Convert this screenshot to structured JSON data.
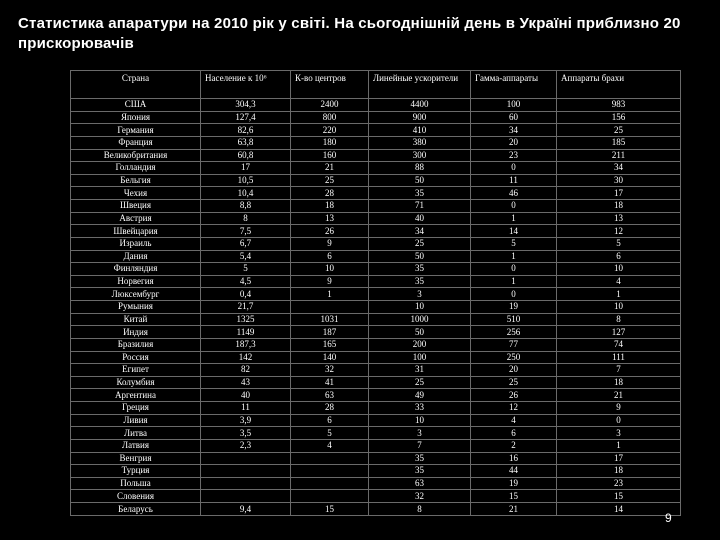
{
  "title": "Статистика апаратури на 2010 рік у світі. На сьогоднішній день в Україні приблизно 20 прискорювачів",
  "table": {
    "headers": [
      "Страна",
      "Население к 10⁶",
      "К-во центров",
      "Линейные ускорители",
      "Гамма-аппараты",
      "Аппараты брахи"
    ],
    "rows": [
      [
        "США",
        "304,3",
        "2400",
        "4400",
        "100",
        "983"
      ],
      [
        "Япония",
        "127,4",
        "800",
        "900",
        "60",
        "156"
      ],
      [
        "Германия",
        "82,6",
        "220",
        "410",
        "34",
        "25"
      ],
      [
        "Франция",
        "63,8",
        "180",
        "380",
        "20",
        "185"
      ],
      [
        "Великобритания",
        "60,8",
        "160",
        "300",
        "23",
        "211"
      ],
      [
        "Голландия",
        "17",
        "21",
        "88",
        "0",
        "34"
      ],
      [
        "Бельгия",
        "10,5",
        "25",
        "50",
        "11",
        "30"
      ],
      [
        "Чехия",
        "10,4",
        "28",
        "35",
        "46",
        "17"
      ],
      [
        "Швеция",
        "8,8",
        "18",
        "71",
        "0",
        "18"
      ],
      [
        "Австрия",
        "8",
        "13",
        "40",
        "1",
        "13"
      ],
      [
        "Швейцария",
        "7,5",
        "26",
        "34",
        "14",
        "12"
      ],
      [
        "Израиль",
        "6,7",
        "9",
        "25",
        "5",
        "5"
      ],
      [
        "Дания",
        "5,4",
        "6",
        "50",
        "1",
        "6"
      ],
      [
        "Финляндия",
        "5",
        "10",
        "35",
        "0",
        "10"
      ],
      [
        "Норвегия",
        "4,5",
        "9",
        "35",
        "1",
        "4"
      ],
      [
        "Люксембург",
        "0,4",
        "1",
        "3",
        "0",
        "1"
      ],
      [
        "Румыния",
        "21,7",
        "",
        "10",
        "19",
        "10"
      ],
      [
        "Китай",
        "1325",
        "1031",
        "1000",
        "510",
        "8"
      ],
      [
        "Индия",
        "1149",
        "187",
        "50",
        "256",
        "127"
      ],
      [
        "Бразилия",
        "187,3",
        "165",
        "200",
        "77",
        "74"
      ],
      [
        "Россия",
        "142",
        "140",
        "100",
        "250",
        "111"
      ],
      [
        "Египет",
        "82",
        "32",
        "31",
        "20",
        "7"
      ],
      [
        "Колумбия",
        "43",
        "41",
        "25",
        "25",
        "18"
      ],
      [
        "Аргентина",
        "40",
        "63",
        "49",
        "26",
        "21"
      ],
      [
        "Греция",
        "11",
        "28",
        "33",
        "12",
        "9"
      ],
      [
        "Ливия",
        "3,9",
        "6",
        "10",
        "4",
        "0"
      ],
      [
        "Литва",
        "3,5",
        "5",
        "3",
        "6",
        "3"
      ],
      [
        "Латвия",
        "2,3",
        "4",
        "7",
        "2",
        "1"
      ],
      [
        "Венгрия",
        "",
        "",
        "35",
        "16",
        "17"
      ],
      [
        "Турция",
        "",
        "",
        "35",
        "44",
        "18"
      ],
      [
        "Польша",
        "",
        "",
        "63",
        "19",
        "23"
      ],
      [
        "Словения",
        "",
        "",
        "32",
        "15",
        "15"
      ],
      [
        "Беларусь",
        "9,4",
        "15",
        "8",
        "21",
        "14"
      ]
    ]
  },
  "page_number": "9"
}
